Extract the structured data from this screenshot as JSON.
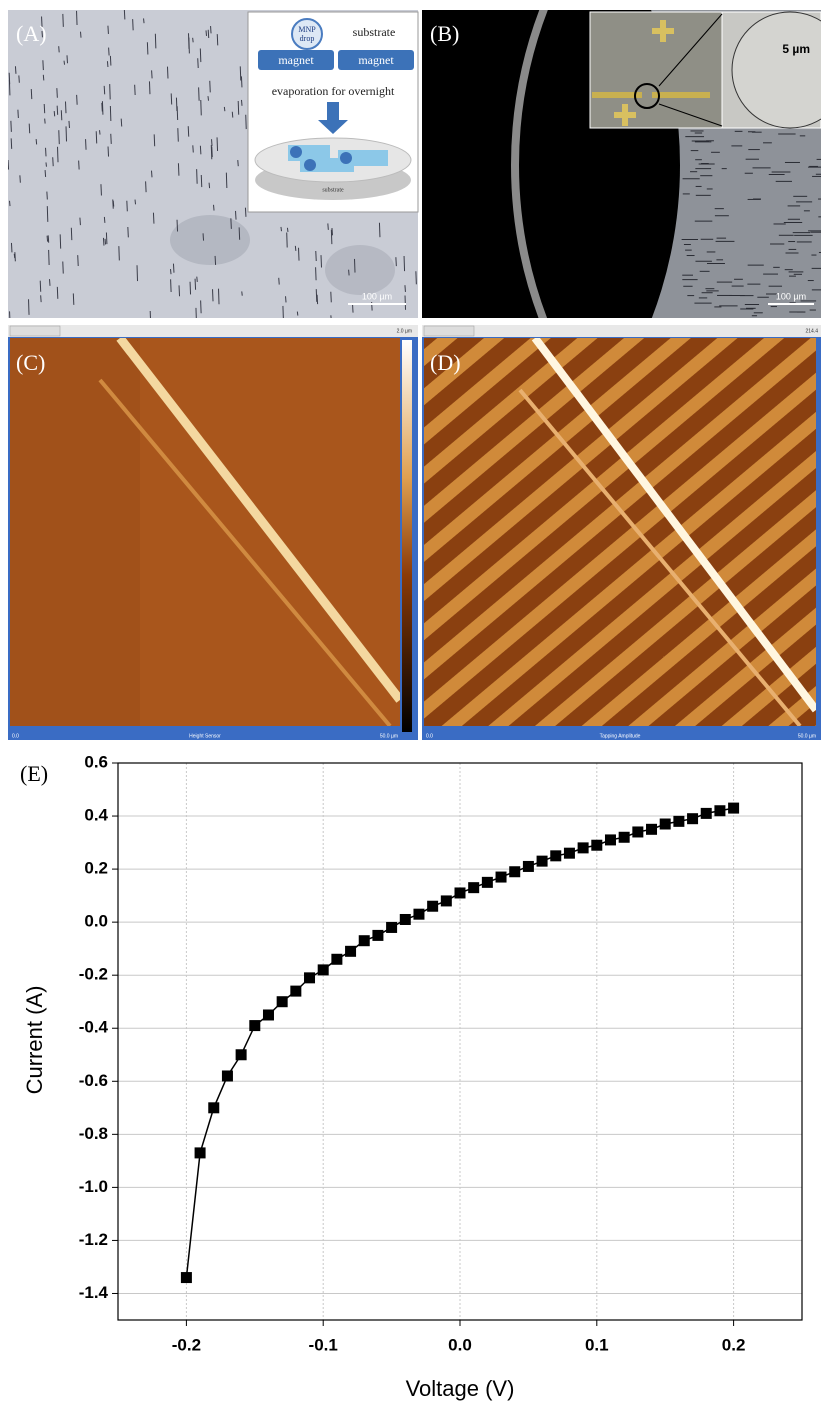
{
  "panels": {
    "a": {
      "label": "(A)",
      "mnp": "MNP",
      "drop": "drop",
      "substrate": "substrate",
      "magnet_left": "magnet",
      "magnet_right": "magnet",
      "evaporation": "evaporation for overnight",
      "base": "substrate",
      "scale": "100 µm"
    },
    "b": {
      "label": "(B)",
      "inset_scale": "5 µm",
      "scale": "100 µm"
    },
    "c": {
      "label": "(C)",
      "range": "2.0 µm",
      "start": "0.0",
      "channel": "Height Sensor",
      "end": "50.0 µm"
    },
    "d": {
      "label": "(D)",
      "range": "214.4",
      "start": "0.0",
      "channel": "Tapping Amplitude",
      "end": "50.0 µm"
    }
  },
  "chart_data": {
    "type": "line",
    "label": "(E)",
    "x_label": "Voltage (V)",
    "y_label": "Current (A)",
    "x": [
      -0.2,
      -0.19,
      -0.18,
      -0.17,
      -0.16,
      -0.15,
      -0.14,
      -0.13,
      -0.12,
      -0.11,
      -0.1,
      -0.09,
      -0.08,
      -0.07,
      -0.06,
      -0.05,
      -0.04,
      -0.03,
      -0.02,
      -0.01,
      0,
      0.01,
      0.02,
      0.03,
      0.04,
      0.05,
      0.06,
      0.07,
      0.08,
      0.09,
      0.1,
      0.11,
      0.12,
      0.13,
      0.14,
      0.15,
      0.16,
      0.17,
      0.18,
      0.19,
      0.2
    ],
    "values": [
      -1.34,
      -0.87,
      -0.7,
      -0.58,
      -0.5,
      -0.39,
      -0.35,
      -0.3,
      -0.26,
      -0.21,
      -0.18,
      -0.14,
      -0.11,
      -0.07,
      -0.05,
      -0.02,
      0.01,
      0.03,
      0.06,
      0.08,
      0.11,
      0.13,
      0.15,
      0.17,
      0.19,
      0.21,
      0.23,
      0.25,
      0.26,
      0.28,
      0.29,
      0.31,
      0.32,
      0.34,
      0.35,
      0.37,
      0.38,
      0.39,
      0.41,
      0.42,
      0.43
    ],
    "color": "#000000",
    "marker": "square",
    "xlim": [
      -0.25,
      0.25
    ],
    "xticks": [
      -0.2,
      -0.1,
      {
        "value": 0,
        "label": "0.0"
      },
      0.1,
      0.2
    ],
    "ylim": [
      -1.5,
      0.6
    ],
    "yticks": [
      0.6,
      0.4,
      0.2,
      {
        "value": 0,
        "label": "0.0"
      },
      -0.2,
      -0.4,
      -0.6,
      -0.8,
      {
        "value": -1,
        "label": "-1.0"
      },
      -1.2,
      -1.4
    ],
    "grid": true
  }
}
